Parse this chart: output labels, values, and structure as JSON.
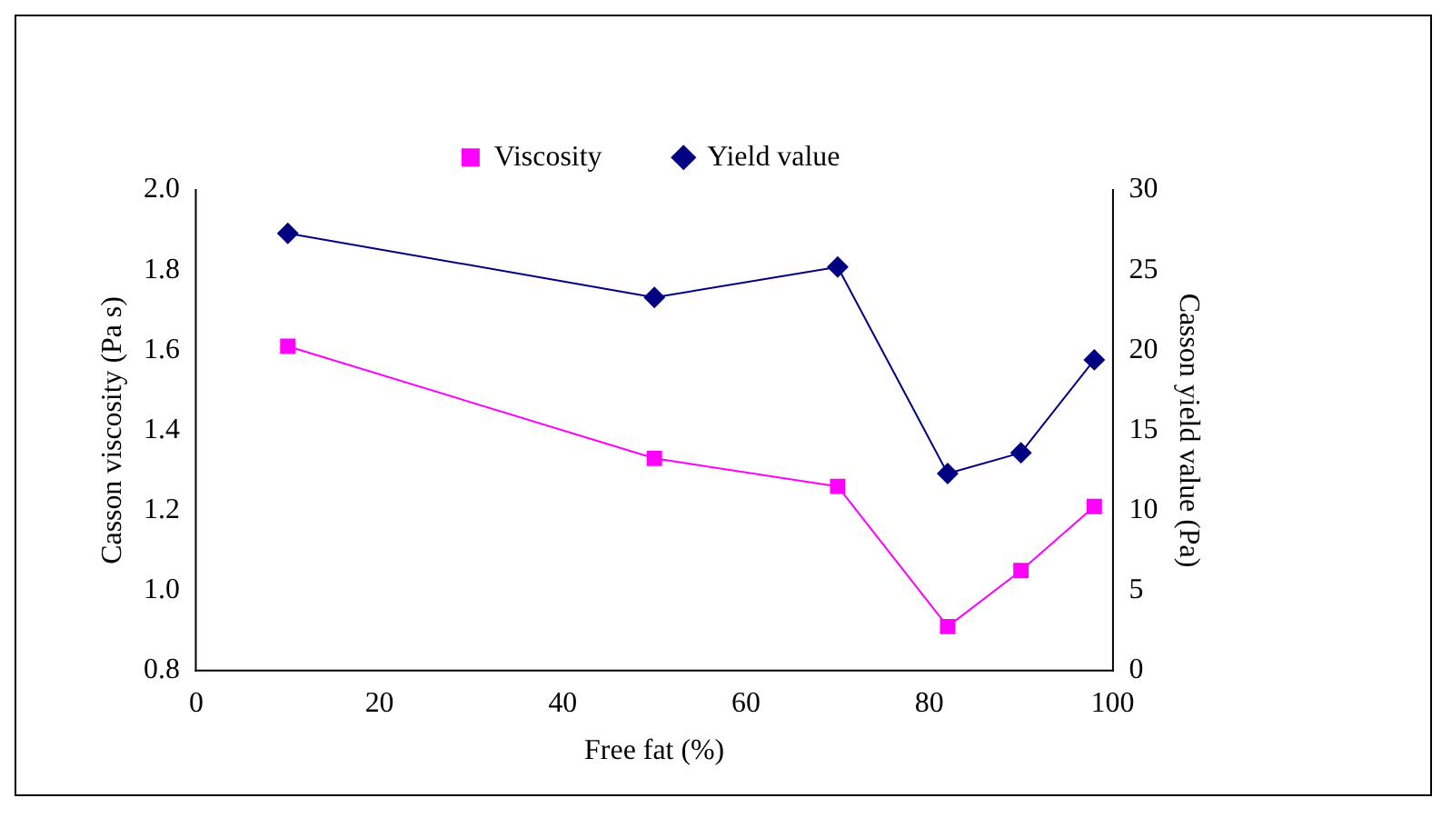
{
  "chart_data": {
    "type": "line",
    "xlabel": "Free fat (%)",
    "ylabel": "Casson viscosity (Pa s)",
    "y2label": "Casson yield value (Pa)",
    "x": [
      10,
      50,
      70,
      82,
      90,
      98
    ],
    "series": [
      {
        "name": "Viscosity",
        "color": "#ff00ff",
        "marker": "square",
        "values": [
          1.61,
          1.33,
          1.26,
          0.91,
          1.05,
          1.21
        ]
      },
      {
        "name": "Yield value",
        "color": "#000080",
        "marker": "diamond",
        "axis": "y2",
        "values": [
          27.3,
          23.3,
          25.2,
          12.3,
          13.6,
          19.4
        ]
      }
    ],
    "xlim": [
      0,
      100
    ],
    "xticks": [
      0,
      20,
      40,
      60,
      80,
      100
    ],
    "ylim": [
      0.8,
      2.0
    ],
    "yticks": [
      {
        "value": 0.8,
        "label": "0.8"
      },
      {
        "value": 1.0,
        "label": "1.0"
      },
      1.2,
      1.4,
      1.6,
      1.8,
      {
        "value": 2.0,
        "label": "2.0"
      }
    ],
    "y2lim": [
      0,
      30
    ],
    "y2ticks": [
      0,
      5,
      10,
      15,
      20,
      25,
      30
    ],
    "grid": false,
    "legend": "top"
  }
}
